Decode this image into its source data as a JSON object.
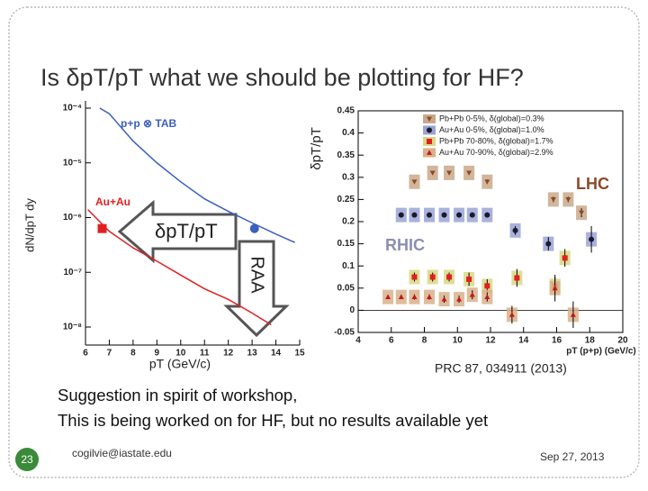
{
  "title": "Is δpT/pT what we should be plotting for HF?",
  "chart_data": [
    {
      "type": "line",
      "log_y": true,
      "xlabel": "pT (GeV/c)",
      "ylabel": "dN/dpT dy",
      "xlim": [
        6,
        15
      ],
      "xticks": [
        6,
        7,
        8,
        9,
        10,
        11,
        12,
        13,
        14,
        15
      ],
      "ylim": [
        1e-08,
        0.0001
      ],
      "yticks": [
        {
          "value": 1e-08,
          "label": "10⁻⁸"
        },
        {
          "value": 1e-07,
          "label": "10⁻⁷"
        },
        {
          "value": 1e-06,
          "label": "10⁻⁶"
        },
        {
          "value": 1e-05,
          "label": "10⁻⁵"
        },
        {
          "value": 0.0001,
          "label": "10⁻⁴"
        }
      ],
      "series": [
        {
          "name": "p+p ⊗ TAB",
          "color": "#3b5fc0",
          "x": [
            6.6,
            7,
            8,
            9,
            10,
            11,
            12,
            13,
            14,
            14.8
          ],
          "values": [
            0.0001,
            7.9e-05,
            2.5e-05,
            1e-05,
            4.5e-06,
            2.2e-06,
            1.3e-06,
            8e-07,
            5e-07,
            3.5e-07
          ],
          "marker": "circle",
          "marker_x": 13.1,
          "marker_value": 6.3e-07
        },
        {
          "name": "Au+Au",
          "color": "#e02020",
          "x": [
            6.1,
            7,
            8,
            9,
            10,
            11,
            12,
            13,
            13.8
          ],
          "values": [
            1.4e-06,
            5.6e-07,
            2.8e-07,
            1.6e-07,
            8.9e-08,
            5e-08,
            3.2e-08,
            1.8e-08,
            1.1e-08
          ],
          "marker": "square",
          "marker_x": 6.7,
          "marker_value": 6.3e-07
        }
      ],
      "annotations": [
        "δpT/pT",
        "RAA"
      ]
    },
    {
      "type": "scatter",
      "xlabel": "pT (p+p) (GeV/c)",
      "ylabel": "δpT/pT",
      "xlim": [
        4,
        20
      ],
      "xticks": [
        4,
        6,
        8,
        10,
        12,
        14,
        16,
        18,
        20
      ],
      "ylim": [
        -0.05,
        0.45
      ],
      "yticks": [
        -0.05,
        0,
        0.05,
        0.1,
        0.15,
        0.2,
        0.25,
        0.3,
        0.35,
        0.4,
        0.45
      ],
      "legend": "upper right",
      "series": [
        {
          "name": "Pb+Pb 0-5%, δ(global)=0.3%",
          "color": "#8b4a2b",
          "box_color": "#c9a98a",
          "marker": "triangle-down",
          "x": [
            7.4,
            8.5,
            9.5,
            10.7,
            11.8,
            15.8,
            16.7,
            17.5
          ],
          "values": [
            0.29,
            0.31,
            0.31,
            0.31,
            0.29,
            0.25,
            0.25,
            0.22
          ],
          "errors": [
            0.004,
            0.004,
            0.004,
            0.004,
            0.005,
            0.006,
            0.006,
            0.01
          ]
        },
        {
          "name": "Au+Au 0-5%, δ(global)=1.0%",
          "color": "#1a1a2a",
          "box_color": "#9aa3d6",
          "marker": "circle",
          "x": [
            6.6,
            7.4,
            8.3,
            9.2,
            10.1,
            10.9,
            11.8,
            13.5,
            15.5,
            18.1
          ],
          "values": [
            0.215,
            0.215,
            0.215,
            0.215,
            0.215,
            0.215,
            0.215,
            0.18,
            0.15,
            0.16
          ],
          "errors": [
            0.003,
            0.003,
            0.003,
            0.003,
            0.003,
            0.003,
            0.004,
            0.01,
            0.015,
            0.03
          ]
        },
        {
          "name": "Pb+Pb 70-80%, δ(global)=1.7%",
          "color": "#e02020",
          "box_color": "#d8d884",
          "marker": "square",
          "x": [
            7.4,
            8.5,
            9.5,
            10.7,
            11.8,
            13.6,
            15.9,
            16.5
          ],
          "values": [
            0.075,
            0.075,
            0.075,
            0.07,
            0.055,
            0.073,
            0.055,
            0.118
          ],
          "errors": [
            0.01,
            0.01,
            0.01,
            0.015,
            0.015,
            0.02,
            0.02,
            0.02
          ]
        },
        {
          "name": "Au+Au 70-90%, δ(global)=2.9%",
          "color": "#c01818",
          "box_color": "#d9b08a",
          "marker": "triangle",
          "x": [
            5.8,
            6.6,
            7.4,
            8.3,
            9.2,
            10.1,
            10.9,
            11.8,
            13.3,
            15.9,
            17.0
          ],
          "values": [
            0.03,
            0.03,
            0.03,
            0.03,
            0.025,
            0.025,
            0.035,
            0.03,
            -0.01,
            0.05,
            -0.01
          ],
          "errors": [
            0.005,
            0.005,
            0.006,
            0.006,
            0.008,
            0.008,
            0.01,
            0.01,
            0.02,
            0.03,
            0.03
          ]
        }
      ],
      "annotations": [
        "LHC",
        "RHIC"
      ]
    }
  ],
  "citation": "PRC 87, 034911 (2013)",
  "body": [
    "Suggestion in spirit of workshop,",
    "This is being worked on for HF,  but no results available yet"
  ],
  "footer": {
    "slide_number": "23",
    "email": "cogilvie@iastate.edu",
    "date": "Sep 27, 2013"
  }
}
